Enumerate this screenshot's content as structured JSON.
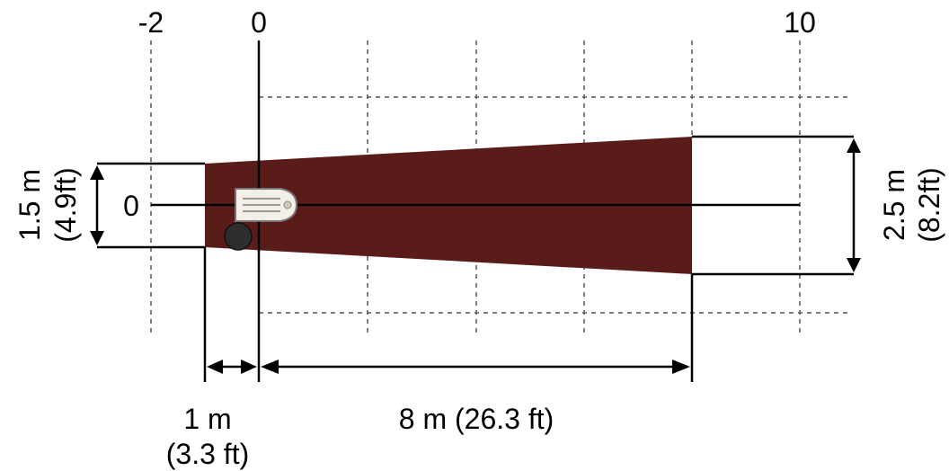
{
  "axis": {
    "x_ticks": [
      "-2",
      "0",
      "10"
    ],
    "y_tick": "0"
  },
  "coverage": {
    "color": "#5a1c19",
    "width_near": {
      "value": "1.5 m",
      "imperial": "(4.9ft)"
    },
    "width_far": {
      "value": "2.5 m",
      "imperial": "(8.2ft)"
    },
    "rear_range": {
      "value": "1 m",
      "imperial": "(3.3 ft)"
    },
    "front_range": {
      "label": "8 m (26.3 ft)"
    }
  },
  "icons": [
    "sensor-device-icon",
    "mounting-knob-icon"
  ]
}
